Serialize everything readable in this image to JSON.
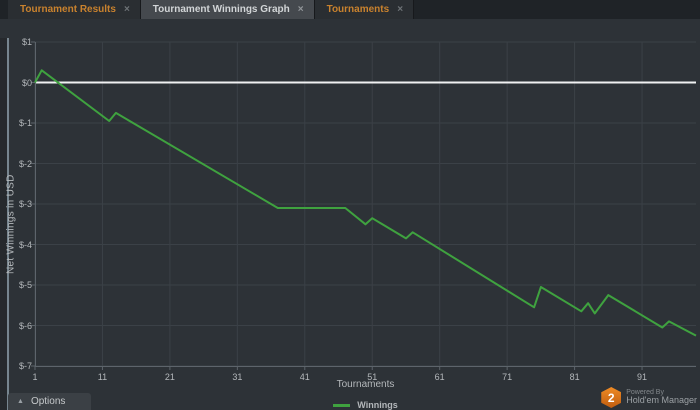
{
  "tabs": [
    {
      "label": "Tournament Results",
      "close": "×",
      "active": false
    },
    {
      "label": "Tournament Winnings Graph",
      "close": "×",
      "active": true
    },
    {
      "label": "Tournaments",
      "close": "×",
      "active": false
    }
  ],
  "chart": {
    "y_axis_title": "Net Winnings in USD",
    "x_axis_title": "Tournaments",
    "legend_label": "Winnings"
  },
  "chart_data": {
    "type": "line",
    "title": "",
    "xlabel": "Tournaments",
    "ylabel": "Net Winnings in USD",
    "xlim": [
      1,
      99
    ],
    "ylim": [
      -7,
      1
    ],
    "grid": true,
    "x_ticks": [
      {
        "v": 1,
        "label": "1"
      },
      {
        "v": 11,
        "label": "11"
      },
      {
        "v": 21,
        "label": "21"
      },
      {
        "v": 31,
        "label": "31"
      },
      {
        "v": 41,
        "label": "41"
      },
      {
        "v": 51,
        "label": "51"
      },
      {
        "v": 61,
        "label": "61"
      },
      {
        "v": 71,
        "label": "71"
      },
      {
        "v": 81,
        "label": "81"
      },
      {
        "v": 91,
        "label": "91"
      }
    ],
    "y_ticks": [
      {
        "v": 1,
        "label": "$1"
      },
      {
        "v": 0,
        "label": "$0"
      },
      {
        "v": -1,
        "label": "$-1"
      },
      {
        "v": -2,
        "label": "$-2"
      },
      {
        "v": -3,
        "label": "$-3"
      },
      {
        "v": -4,
        "label": "$-4"
      },
      {
        "v": -5,
        "label": "$-5"
      },
      {
        "v": -6,
        "label": "$-6"
      },
      {
        "v": -7,
        "label": "$-7"
      }
    ],
    "zero_line": {
      "value": 0,
      "color": "#f0f1f2"
    },
    "series": [
      {
        "name": "Winnings",
        "color": "#3fa23f",
        "points": [
          [
            1,
            0.0
          ],
          [
            2,
            0.3
          ],
          [
            12,
            -0.95
          ],
          [
            13,
            -0.75
          ],
          [
            37,
            -3.1
          ],
          [
            47,
            -3.1
          ],
          [
            50,
            -3.5
          ],
          [
            51,
            -3.35
          ],
          [
            56,
            -3.85
          ],
          [
            57,
            -3.7
          ],
          [
            75,
            -5.55
          ],
          [
            76,
            -5.05
          ],
          [
            82,
            -5.65
          ],
          [
            83,
            -5.45
          ],
          [
            84,
            -5.7
          ],
          [
            86,
            -5.25
          ],
          [
            94,
            -6.05
          ],
          [
            95,
            -5.9
          ],
          [
            99,
            -6.25
          ]
        ]
      }
    ],
    "legend_position": "bottom",
    "colors": {
      "plot_background": "#2d3237",
      "grid_line": "#3b4147",
      "axis_line": "#5d646b",
      "tick_text": "#b4b8bb"
    }
  },
  "footer": {
    "options_label": "Options",
    "options_arrow": "▲",
    "powered_by": "Powered By",
    "brand": "Hold'em Manager",
    "brand_badge": "2"
  }
}
